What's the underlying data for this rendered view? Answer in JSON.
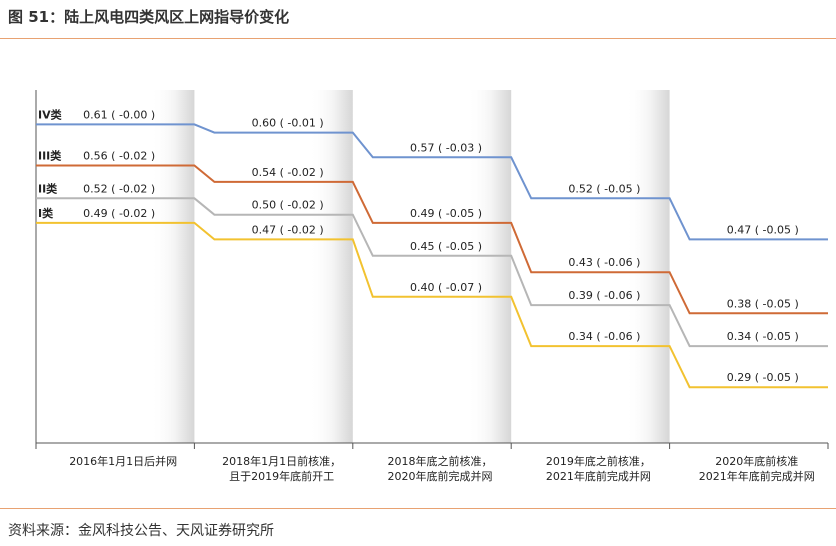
{
  "title": "图 51：陆上风电四类风区上网指导价变化",
  "source": "资料来源：金风科技公告、天风证券研究所",
  "chart_data": {
    "type": "line",
    "step": true,
    "categories": [
      [
        "2016年1月1日后并网"
      ],
      [
        "2018年1月1日前核准，",
        "且于2019年底前开工"
      ],
      [
        "2018年底之前核准，",
        "2020年底前完成并网"
      ],
      [
        "2019年底之前核准，",
        "2021年底前完成并网"
      ],
      [
        "2020年底前核准",
        "2021年年底前完成并网"
      ]
    ],
    "series": [
      {
        "name": "IV类",
        "color": "#6f93cf",
        "values": [
          0.61,
          0.6,
          0.57,
          0.52,
          0.47
        ],
        "labels": [
          "0.61 ( -0.00 )",
          "0.60 ( -0.01 )",
          "0.57 ( -0.03 )",
          "0.52 ( -0.05 )",
          "0.47 ( -0.05 )"
        ]
      },
      {
        "name": "III类",
        "color": "#cf6a36",
        "values": [
          0.56,
          0.54,
          0.49,
          0.43,
          0.38
        ],
        "labels": [
          "0.56 ( -0.02 )",
          "0.54 ( -0.02 )",
          "0.49 ( -0.05 )",
          "0.43 ( -0.06 )",
          "0.38 ( -0.05 )"
        ]
      },
      {
        "name": "II类",
        "color": "#b6b6b6",
        "values": [
          0.52,
          0.5,
          0.45,
          0.39,
          0.34
        ],
        "labels": [
          "0.52 ( -0.02 )",
          "0.50 ( -0.02 )",
          "0.45 ( -0.05 )",
          "0.39 ( -0.06 )",
          "0.34 ( -0.05 )"
        ]
      },
      {
        "name": "I类",
        "color": "#f2c230",
        "values": [
          0.49,
          0.47,
          0.4,
          0.34,
          0.29
        ],
        "labels": [
          "0.49 ( -0.02 )",
          "0.47 ( -0.02 )",
          "0.40 ( -0.07 )",
          "0.34 ( -0.06 )",
          "0.29 ( -0.05 )"
        ]
      }
    ],
    "ylim": [
      0.25,
      0.63
    ],
    "xlabel": "",
    "ylabel": "",
    "grid": false
  }
}
